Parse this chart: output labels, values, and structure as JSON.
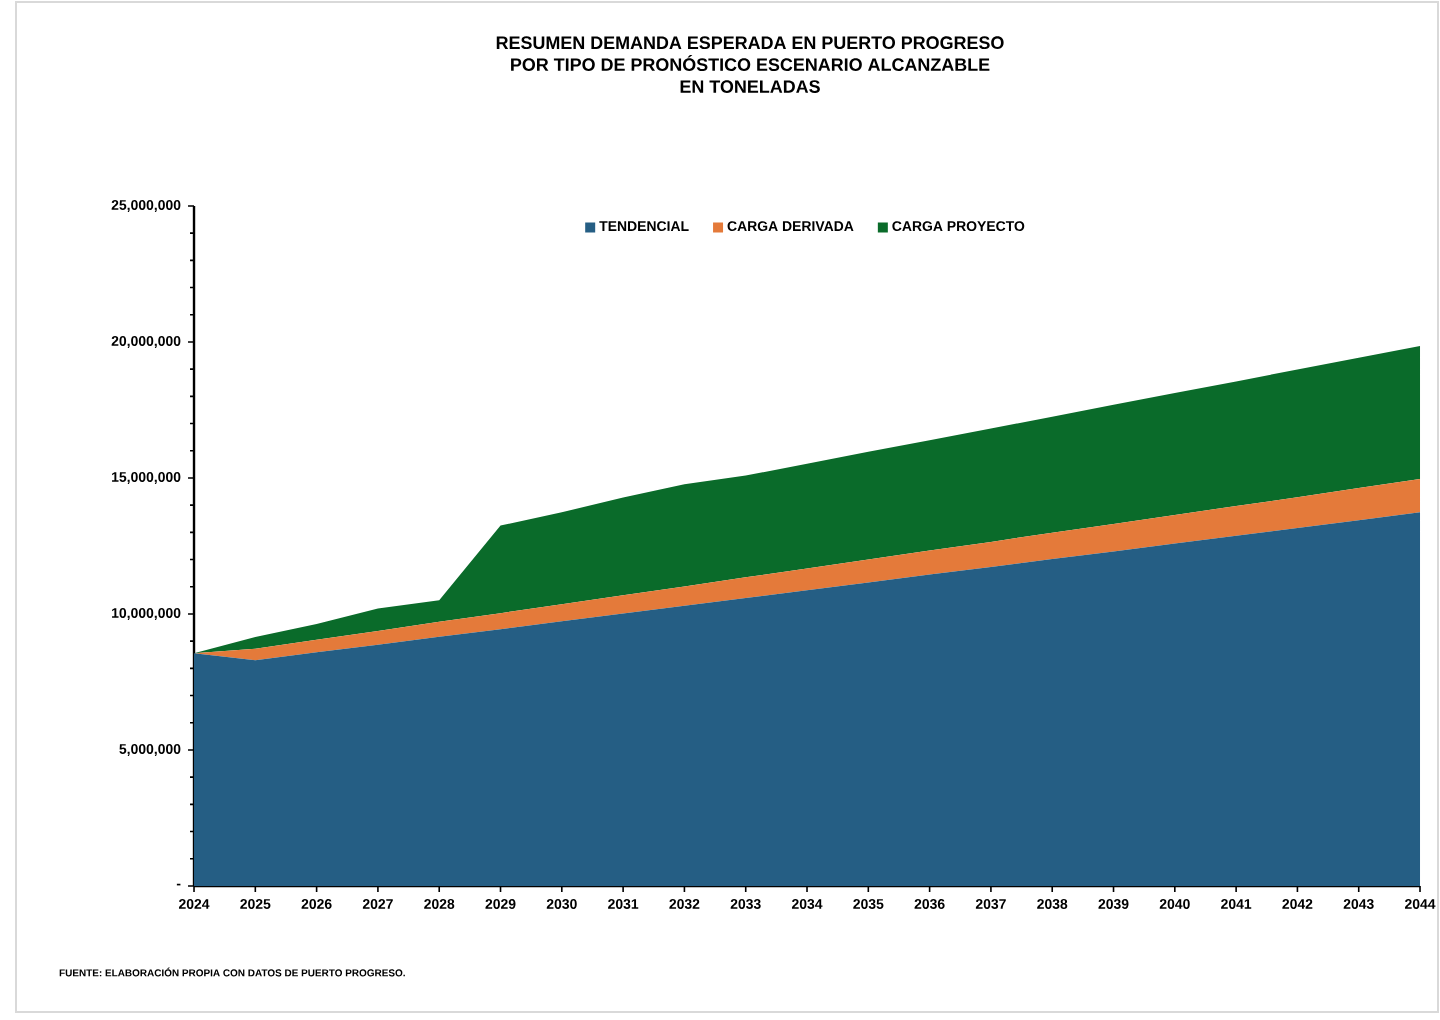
{
  "chart_data": {
    "type": "area",
    "stacked": true,
    "title": "RESUMEN DEMANDA ESPERADA EN PUERTO PROGRESO\nPOR TIPO DE PRONÓSTICO ESCENARIO ALCANZABLE\nEN TONELADAS",
    "categories": [
      "2024",
      "2025",
      "2026",
      "2027",
      "2028",
      "2029",
      "2030",
      "2031",
      "2032",
      "2033",
      "2034",
      "2035",
      "2036",
      "2037",
      "2038",
      "2039",
      "2040",
      "2041",
      "2042",
      "2043",
      "2044"
    ],
    "series": [
      {
        "name": "TENDENCIAL",
        "color": "#255e84",
        "values": [
          8560000,
          8300000,
          8590000,
          8870000,
          9160000,
          9440000,
          9730000,
          10020000,
          10300000,
          10590000,
          10870000,
          11160000,
          11450000,
          11730000,
          12020000,
          12300000,
          12590000,
          12880000,
          13160000,
          13450000,
          13740000
        ]
      },
      {
        "name": "CARGA DERIVADA",
        "color": "#e47a3a",
        "values": [
          0,
          420000,
          460000,
          500000,
          550000,
          590000,
          630000,
          670000,
          710000,
          760000,
          800000,
          840000,
          880000,
          920000,
          970000,
          1010000,
          1050000,
          1090000,
          1130000,
          1180000,
          1220000
        ]
      },
      {
        "name": "CARGA PROYECTO",
        "color": "#0a6b2a",
        "values": [
          0,
          430000,
          580000,
          830000,
          790000,
          3220000,
          3380000,
          3590000,
          3760000,
          3740000,
          3850000,
          3960000,
          4060000,
          4170000,
          4260000,
          4380000,
          4480000,
          4580000,
          4700000,
          4790000,
          4890000
        ]
      }
    ],
    "ylim": [
      0,
      25000000
    ],
    "yticks": [
      {
        "value": 0,
        "label": "-"
      },
      {
        "value": 5000000,
        "label": "5,000,000"
      },
      {
        "value": 10000000,
        "label": "10,000,000"
      },
      {
        "value": 15000000,
        "label": "15,000,000"
      },
      {
        "value": 20000000,
        "label": "20,000,000"
      },
      {
        "value": 25000000,
        "label": "25,000,000"
      }
    ],
    "legend": "top",
    "annotations": [
      "FUENTE: ELABORACIÓN PROPIA CON DATOS DE PUERTO PROGRESO."
    ]
  }
}
